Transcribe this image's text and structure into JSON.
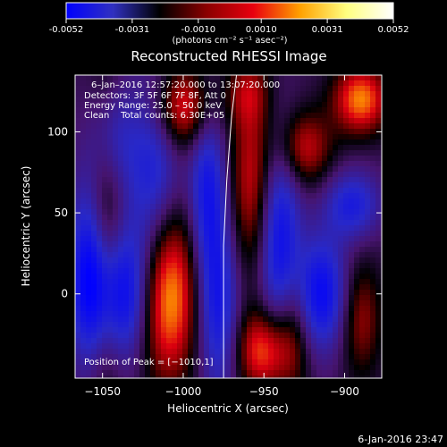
{
  "colorbar": {
    "ticks": [
      "-0.0052",
      "-0.0031",
      "-0.0010",
      "0.0010",
      "0.0031",
      "0.0052"
    ],
    "tick_values": [
      -0.0052,
      -0.0031,
      -0.001,
      0.001,
      0.0031,
      0.0052
    ],
    "range": [
      -0.0052,
      0.0052
    ],
    "units_label": "(photons cm⁻² s⁻¹ asec⁻²)",
    "colors": [
      "#0000ff",
      "#3030c0",
      "#000000",
      "#8a0000",
      "#e8000f",
      "#ffa000",
      "#ffff80",
      "#ffffff"
    ]
  },
  "chart_data": {
    "type": "heatmap",
    "title": "Reconstructed RHESSI Image",
    "xlabel": "Heliocentric X (arcsec)",
    "ylabel": "Heliocentric Y (arcsec)",
    "xlim": [
      -1067,
      -877
    ],
    "ylim": [
      -52,
      135
    ],
    "x_ticks": [
      -1050,
      -1000,
      -950,
      -900
    ],
    "y_ticks": [
      0,
      50,
      100
    ],
    "x_tick_labels": [
      "−1050",
      "−1000",
      "−950",
      "−900"
    ],
    "y_tick_labels": [
      "0",
      "50",
      "100"
    ],
    "colormap": "blue-black-red-yellow-white (diverging)",
    "annotations": {
      "time_range": "6–Jan–2016 12:57:20.000 to 13:07:20.000",
      "detectors": "Detectors: 3F 5F 6F 7F 8F, Att 0",
      "energy": "Energy Range: 25.0 – 50.0 keV",
      "clean": "Clean    Total counts: 6.30E+05",
      "peak": "Position of Peak = [−1010,1]"
    },
    "limb_points": [
      [
        -975,
        -52
      ],
      [
        -975,
        30
      ],
      [
        -973,
        70
      ],
      [
        -970,
        110
      ],
      [
        -967,
        135
      ]
    ],
    "blobs": [
      {
        "x": -1058,
        "y": 15,
        "v": -0.7,
        "sx": 9,
        "sy": 40
      },
      {
        "x": -1048,
        "y": 30,
        "v": 0.55,
        "sx": 8,
        "sy": 70
      },
      {
        "x": -1040,
        "y": 0,
        "v": -0.9,
        "sx": 14,
        "sy": 30
      },
      {
        "x": -1045,
        "y": 95,
        "v": -0.5,
        "sx": 10,
        "sy": 25
      },
      {
        "x": -1018,
        "y": 70,
        "v": -0.6,
        "sx": 12,
        "sy": 45
      },
      {
        "x": -1010,
        "y": 2,
        "v": 1.0,
        "sx": 13,
        "sy": 38
      },
      {
        "x": -1000,
        "y": 115,
        "v": 0.7,
        "sx": 13,
        "sy": 18
      },
      {
        "x": -985,
        "y": 65,
        "v": -0.6,
        "sx": 8,
        "sy": 40
      },
      {
        "x": -978,
        "y": -10,
        "v": -0.6,
        "sx": 9,
        "sy": 40
      },
      {
        "x": -958,
        "y": 70,
        "v": 0.55,
        "sx": 9,
        "sy": 40
      },
      {
        "x": -950,
        "y": -35,
        "v": 0.75,
        "sx": 12,
        "sy": 18
      },
      {
        "x": -940,
        "y": 30,
        "v": -0.7,
        "sx": 9,
        "sy": 45
      },
      {
        "x": -932,
        "y": -20,
        "v": 0.45,
        "sx": 8,
        "sy": 30
      },
      {
        "x": -925,
        "y": 90,
        "v": 0.55,
        "sx": 12,
        "sy": 16
      },
      {
        "x": -915,
        "y": 0,
        "v": -0.75,
        "sx": 12,
        "sy": 25
      },
      {
        "x": -895,
        "y": 55,
        "v": -0.55,
        "sx": 12,
        "sy": 15
      },
      {
        "x": -890,
        "y": -15,
        "v": 0.45,
        "sx": 9,
        "sy": 25
      },
      {
        "x": -890,
        "y": 120,
        "v": 0.8,
        "sx": 12,
        "sy": 15
      },
      {
        "x": -960,
        "y": 125,
        "v": 0.35,
        "sx": 10,
        "sy": 15
      }
    ]
  },
  "footer": {
    "date": "6-Jan-2016 23:47"
  }
}
